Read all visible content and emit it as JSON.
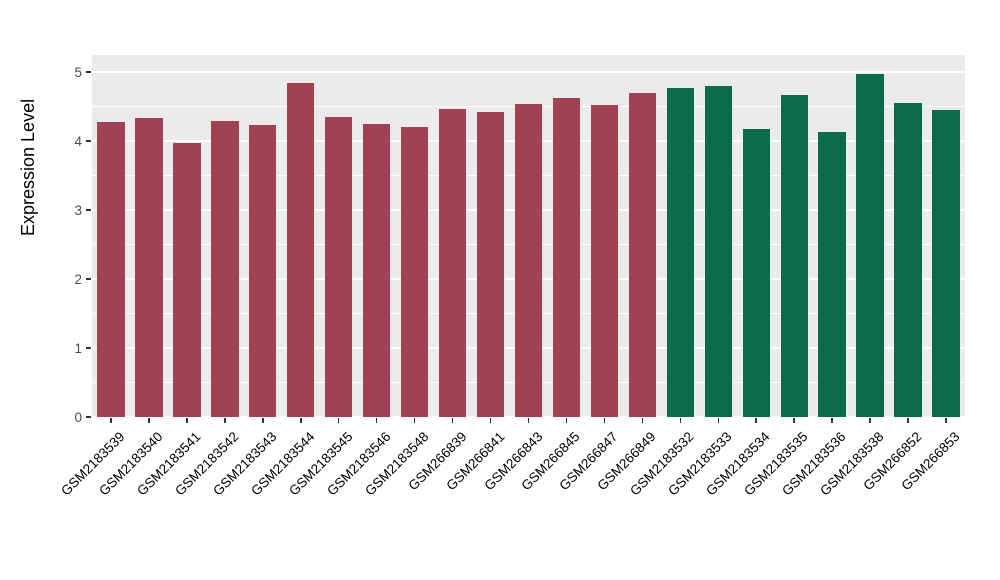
{
  "chart_data": {
    "type": "bar",
    "title": "",
    "xlabel": "",
    "ylabel": "Expression Level",
    "ylim": [
      0,
      5.25
    ],
    "yticks": [
      0,
      1,
      2,
      3,
      4,
      5
    ],
    "yticks_minor": [
      0.5,
      1.5,
      2.5,
      3.5,
      4.5
    ],
    "grid": "on",
    "legend_position": "none",
    "panel_background": "#EBEBEB",
    "gridline_color": "#FFFFFF",
    "categories": [
      "GSM2183539",
      "GSM2183540",
      "GSM2183541",
      "GSM2183542",
      "GSM2183543",
      "GSM2183544",
      "GSM2183545",
      "GSM2183546",
      "GSM2183548",
      "GSM266839",
      "GSM266841",
      "GSM266843",
      "GSM266845",
      "GSM266847",
      "GSM266849",
      "GSM2183532",
      "GSM2183533",
      "GSM2183534",
      "GSM2183535",
      "GSM2183536",
      "GSM2183538",
      "GSM266852",
      "GSM266853"
    ],
    "values": [
      4.28,
      4.33,
      3.97,
      4.3,
      4.24,
      4.85,
      4.35,
      4.25,
      4.2,
      4.46,
      4.42,
      4.54,
      4.62,
      4.52,
      4.7,
      4.77,
      4.8,
      4.18,
      4.67,
      4.13,
      4.98,
      4.55,
      4.45
    ],
    "groups": [
      0,
      0,
      0,
      0,
      0,
      0,
      0,
      0,
      0,
      0,
      0,
      0,
      0,
      0,
      0,
      1,
      1,
      1,
      1,
      1,
      1,
      1,
      1
    ],
    "group_colors": [
      "#A04252",
      "#0B6B4B"
    ]
  }
}
